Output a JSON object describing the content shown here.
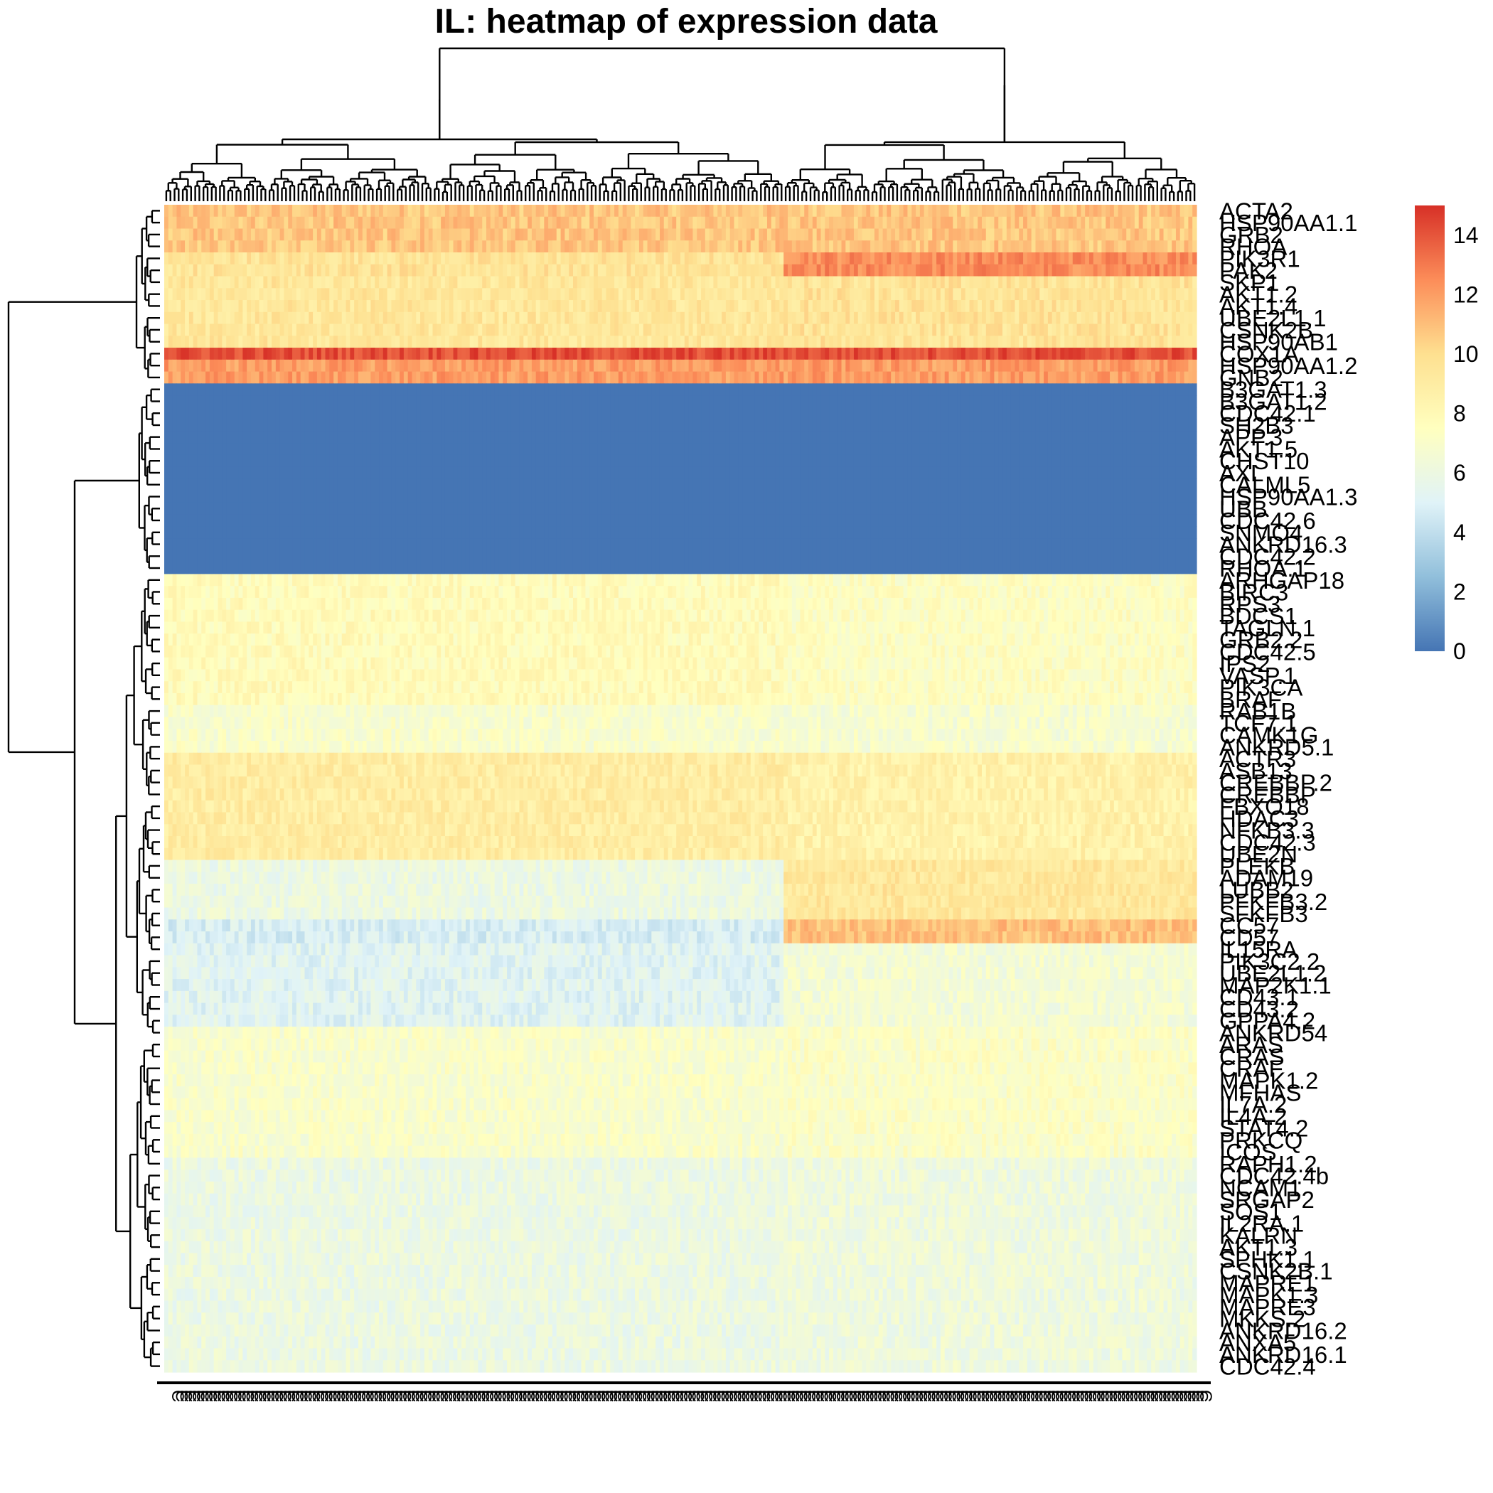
{
  "chart_data": {
    "type": "heatmap",
    "title": "IL: heatmap of expression data",
    "n_columns": 250,
    "column_label_text": "C",
    "legend": {
      "min": 0,
      "max": 15,
      "ticks": [
        0,
        2,
        4,
        6,
        8,
        10,
        12,
        14
      ],
      "colors": [
        "#4575b4",
        "#91bfdb",
        "#e0f3f8",
        "#ffffbf",
        "#fee090",
        "#fc8d59",
        "#d73027"
      ]
    },
    "row_labels": [
      "ACTA2",
      "HSP90AA1.1",
      "GRB2",
      "RHOA",
      "PIK3R1",
      "PAK2",
      "SKP1",
      "AKT1.2",
      "AKT1.4",
      "UBE2L1.1",
      "CSNK2B",
      "HSP90AB1",
      "COX1A",
      "HSP90AA1.2",
      "GNB2",
      "B3GAT1.3",
      "B3GAT1.2",
      "CDC42.1",
      "SH2B3",
      "APP.3",
      "AKT1.5",
      "CHST10",
      "AXL",
      "CALML5",
      "HSP90AA1.3",
      "UBB",
      "CDC42.6",
      "SNMO4",
      "ANKRD16.3",
      "CDC42.2",
      "RHOA.1",
      "ARHGAP18",
      "BIRC3",
      "RPS3",
      "BDCS1",
      "TAGLN.1",
      "GRB2.2",
      "CDC42.5",
      "IPS2",
      "VASP.1",
      "PIK3CA",
      "BRAF",
      "RAB1B",
      "TCF7.1",
      "CAMK1G",
      "ANKRD5.1",
      "ACTR3",
      "ASB13",
      "CREBBP.2",
      "CREBBP",
      "FBXO18",
      "HDAC3",
      "NFKB3.3",
      "CDC42.3",
      "UBE2N",
      "PLEKB",
      "ADAM19",
      "LUBB2",
      "PFKFB3.2",
      "SFKFB3",
      "CC57",
      "CD57",
      "IL15RA",
      "PIK3C2.2",
      "UBE2L1.2",
      "MAP2K1.1",
      "CD43.1",
      "CD43.2",
      "GPPA4.2",
      "ANKRD54",
      "ARAS",
      "CRAS",
      "CRAF",
      "MAPK1.2",
      "MFHAS",
      "IL7A.2",
      "IL4A.2",
      "STAT4.2",
      "PRKCQ",
      "ICOS",
      "RAPH1.2",
      "CDC42.4b",
      "NCAM1",
      "SRGAP2",
      "SOS1",
      "IL2RA.1",
      "KALRN",
      "AKT1.3",
      "SPHK1.1",
      "CSNK2B.1",
      "MAPRE1",
      "MAPK1.3",
      "MAPRE3",
      "MKKS.2",
      "ANKRD16.2",
      "ANXA5",
      "ANKRD16.1",
      "CDC42.4"
    ]
  }
}
